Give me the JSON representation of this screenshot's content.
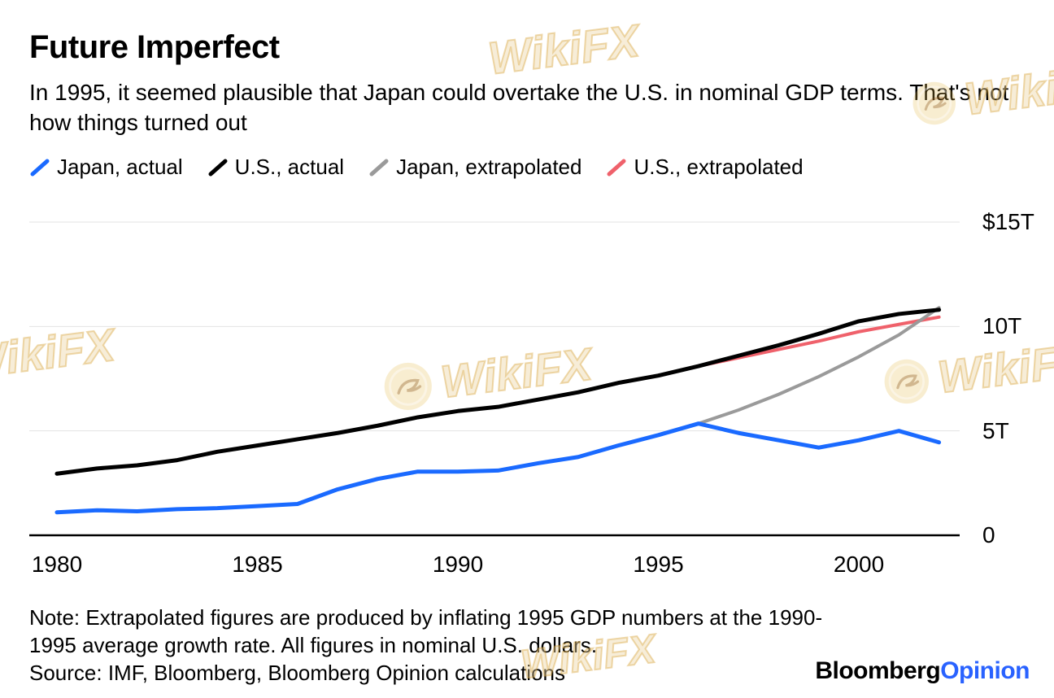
{
  "header": {
    "title": "Future Imperfect",
    "subtitle": "In 1995, it seemed plausible that Japan could overtake the U.S. in nominal GDP terms. That's not how things turned out"
  },
  "legend": {
    "items": [
      {
        "label": "Japan, actual",
        "color": "#1a6aff"
      },
      {
        "label": "U.S., actual",
        "color": "#000000"
      },
      {
        "label": "Japan, extrapolated",
        "color": "#9a9a9a"
      },
      {
        "label": "U.S., extrapolated",
        "color": "#ef616b"
      }
    ]
  },
  "chart_data": {
    "type": "line",
    "title": "Future Imperfect",
    "unit": "nominal GDP, trillions of U.S. dollars",
    "x_range": [
      1980,
      2002
    ],
    "x_ticks": [
      "1980",
      "1985",
      "1990",
      "1995",
      "2000"
    ],
    "y_ticks": [
      {
        "value": 15,
        "label": "$15T"
      },
      {
        "value": 10,
        "label": "10T"
      },
      {
        "value": 5,
        "label": "5T"
      },
      {
        "value": 0,
        "label": "0"
      }
    ],
    "ylim": [
      0,
      15
    ],
    "grid": true,
    "grid_color": "#e3e3e3",
    "axis_color": "#000000",
    "legend_position": "top",
    "series": [
      {
        "name": "U.S., extrapolated",
        "color": "#ef616b",
        "width": 4,
        "start_year": 1996,
        "values": [
          8.1,
          8.5,
          8.9,
          9.3,
          9.75,
          10.1,
          10.45
        ]
      },
      {
        "name": "Japan, extrapolated",
        "color": "#9a9a9a",
        "width": 4,
        "start_year": 1996,
        "values": [
          5.35,
          6.0,
          6.75,
          7.6,
          8.55,
          9.6,
          10.9
        ]
      },
      {
        "name": "U.S., actual",
        "color": "#000000",
        "width": 5,
        "start_year": 1980,
        "values": [
          2.95,
          3.2,
          3.35,
          3.6,
          4.0,
          4.3,
          4.6,
          4.9,
          5.25,
          5.65,
          5.95,
          6.15,
          6.5,
          6.85,
          7.3,
          7.65,
          8.1,
          8.6,
          9.1,
          9.65,
          10.25,
          10.6,
          10.8
        ]
      },
      {
        "name": "Japan, actual",
        "color": "#1a6aff",
        "width": 5,
        "start_year": 1980,
        "values": [
          1.1,
          1.2,
          1.15,
          1.25,
          1.3,
          1.4,
          1.5,
          2.2,
          2.7,
          3.05,
          3.05,
          3.1,
          3.45,
          3.75,
          4.3,
          4.8,
          5.35,
          4.9,
          4.55,
          4.2,
          4.55,
          5.0,
          4.45
        ]
      }
    ]
  },
  "footer": {
    "note": "Note: Extrapolated figures are produced by inflating 1995 GDP numbers at the 1990-1995 average growth rate. All figures in nominal U.S. dollars.",
    "source": "Source: IMF, Bloomberg, Bloomberg Opinion calculations"
  },
  "brand": {
    "name": "Bloomberg",
    "suffix": "Opinion",
    "suffix_color": "#2962ff"
  },
  "watermark": {
    "text": "WikiFX"
  }
}
